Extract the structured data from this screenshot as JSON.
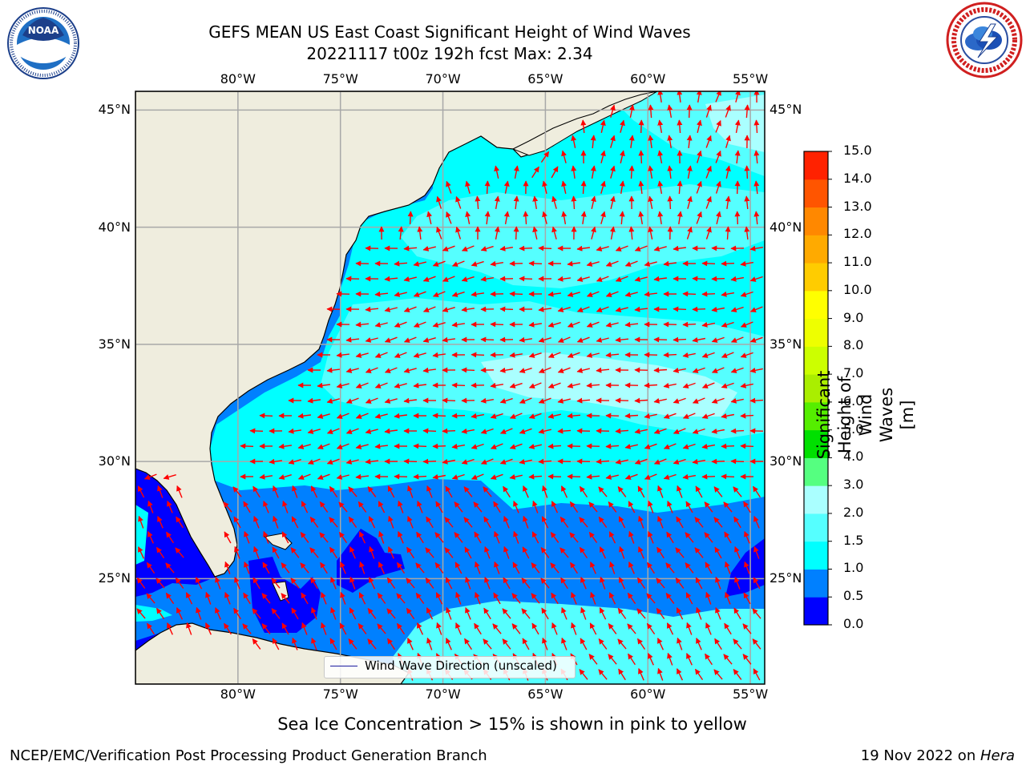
{
  "header": {
    "title_line1": "GEFS MEAN US East Coast Significant Height of Wind Waves",
    "title_line2": "20221117 t00z 192h fcst   Max: 2.34"
  },
  "logos": {
    "left": {
      "icon": "noaa-logo-icon",
      "text": "NOAA",
      "ring_text": "NATIONAL OCEANIC AND ATMOSPHERIC ADMINISTRATION · U.S. DEPARTMENT OF COMMERCE"
    },
    "right": {
      "icon": "nws-logo-icon",
      "ring_text": "NATIONAL WEATHER SERVICE"
    }
  },
  "map": {
    "lon_labels": [
      "80°W",
      "75°W",
      "70°W",
      "65°W",
      "60°W",
      "55°W"
    ],
    "lat_labels": [
      "45°N",
      "40°N",
      "35°N",
      "30°N",
      "25°N"
    ],
    "lon_values": [
      -80,
      -75,
      -70,
      -65,
      -60,
      -55
    ],
    "lat_values": [
      45,
      40,
      35,
      30,
      25
    ],
    "extent": {
      "lon_min": -85,
      "lon_max": -54.3,
      "lat_min": 20.5,
      "lat_max": 45.8
    },
    "grid": true,
    "land_color": "#efedde",
    "coast_color": "#000000",
    "arrow_color": "#ff0000",
    "grid_color": "#a8a8a8",
    "legend_label": "Wind Wave Direction (unscaled)"
  },
  "colorbar": {
    "label": "Significant Height of Wind Waves [m]",
    "ticks": [
      "0.0",
      "0.5",
      "1.0",
      "1.5",
      "2.0",
      "3.0",
      "4.0",
      "5.0",
      "6.0",
      "7.0",
      "8.0",
      "9.0",
      "10.0",
      "11.0",
      "12.0",
      "13.0",
      "14.0",
      "15.0"
    ],
    "colors": [
      "#0000ff",
      "#0080ff",
      "#00ffff",
      "#55ffff",
      "#aaffff",
      "#55ff80",
      "#00e000",
      "#55ee00",
      "#aaee00",
      "#ccff00",
      "#eeff00",
      "#ffff00",
      "#ffcc00",
      "#ffaa00",
      "#ff8800",
      "#ff5500",
      "#ff2200"
    ]
  },
  "notes": {
    "sea_ice": "Sea Ice Concentration > 15% is shown in pink to yellow"
  },
  "footer": {
    "left": "NCEP/EMC/Verification Post Processing Product Generation Branch",
    "right_prefix": "19 Nov 2022 on ",
    "right_host": "Hera"
  }
}
